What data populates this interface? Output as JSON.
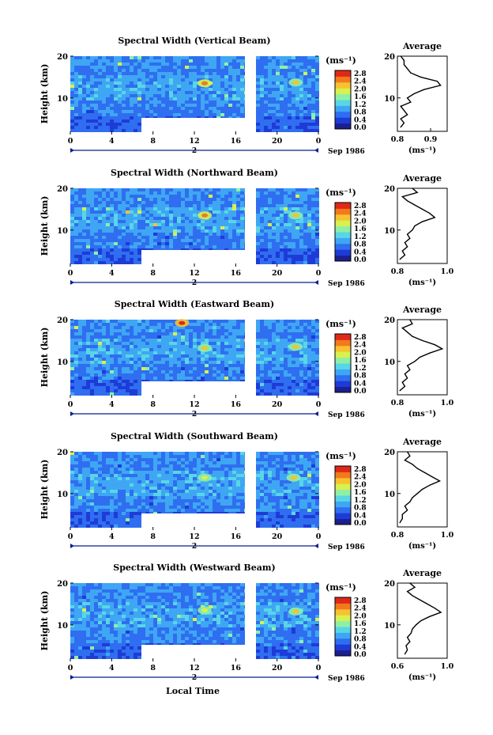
{
  "figure": {
    "xlabel": "Local Time",
    "colorbar_unit": "(ms⁻¹)",
    "colorbar_ticks": [
      "2.8",
      "2.4",
      "2.0",
      "1.6",
      "1.2",
      "0.8",
      "0.4",
      "0.0"
    ],
    "date_label": "Sep 1986",
    "day_label": "2",
    "colormap": [
      "#1c1f8c",
      "#1e3bd8",
      "#2f6ef0",
      "#3fa6f4",
      "#58d6e6",
      "#8ef0a6",
      "#d8f050",
      "#f7c230",
      "#f27a1c",
      "#e02818"
    ]
  },
  "chart_data": [
    {
      "type": "heatmap",
      "title": "Spectral Width (Vertical Beam)",
      "xlabel": "",
      "ylabel": "Height (km)",
      "x_ticks": [
        "0",
        "4",
        "8",
        "12",
        "16",
        "20",
        "0"
      ],
      "xlim": [
        0,
        24
      ],
      "y_ticks": [
        "20",
        "10"
      ],
      "ylim": [
        2,
        20
      ],
      "hotspots": [
        {
          "x": 13.0,
          "y": 13.5,
          "value": 2.4
        },
        {
          "x": 21.8,
          "y": 13.7,
          "value": 2.0
        }
      ],
      "profile": {
        "title": "Average",
        "xlabel": "(ms⁻¹)",
        "x_ticks": [
          "0.8",
          "0.9"
        ],
        "xlim": [
          0.8,
          0.95
        ],
        "y_ticks": [
          "20",
          "10"
        ],
        "y": [
          3,
          4,
          5,
          6,
          7,
          8,
          9,
          10,
          11,
          12,
          13,
          14,
          15,
          16,
          17,
          18,
          19,
          20
        ],
        "x": [
          0.81,
          0.82,
          0.81,
          0.83,
          0.82,
          0.81,
          0.84,
          0.83,
          0.85,
          0.88,
          0.93,
          0.92,
          0.87,
          0.84,
          0.83,
          0.82,
          0.82,
          0.81
        ]
      }
    },
    {
      "type": "heatmap",
      "title": "Spectral Width (Northward Beam)",
      "xlabel": "",
      "ylabel": "Height (km)",
      "x_ticks": [
        "0",
        "4",
        "8",
        "12",
        "16",
        "20",
        "0"
      ],
      "xlim": [
        0,
        24
      ],
      "y_ticks": [
        "20",
        "10"
      ],
      "ylim": [
        2,
        20
      ],
      "hotspots": [
        {
          "x": 13.0,
          "y": 13.5,
          "value": 2.4
        },
        {
          "x": 21.8,
          "y": 13.5,
          "value": 2.0
        }
      ],
      "profile": {
        "title": "Average",
        "xlabel": "(ms⁻¹)",
        "x_ticks": [
          "0.8",
          "1.0"
        ],
        "xlim": [
          0.8,
          1.0
        ],
        "y_ticks": [
          "20",
          "10"
        ],
        "y": [
          3,
          4,
          5,
          6,
          7,
          8,
          9,
          10,
          11,
          12,
          13,
          14,
          15,
          16,
          17,
          18,
          19,
          20
        ],
        "x": [
          0.81,
          0.83,
          0.82,
          0.84,
          0.83,
          0.85,
          0.84,
          0.86,
          0.87,
          0.9,
          0.95,
          0.93,
          0.9,
          0.87,
          0.84,
          0.82,
          0.88,
          0.86
        ]
      }
    },
    {
      "type": "heatmap",
      "title": "Spectral Width (Eastward Beam)",
      "xlabel": "",
      "ylabel": "Height (km)",
      "x_ticks": [
        "0",
        "4",
        "8",
        "12",
        "16",
        "20",
        "0"
      ],
      "xlim": [
        0,
        24
      ],
      "y_ticks": [
        "20",
        "10"
      ],
      "ylim": [
        2,
        20
      ],
      "hotspots": [
        {
          "x": 10.8,
          "y": 19.2,
          "value": 2.6
        },
        {
          "x": 13.0,
          "y": 13.2,
          "value": 2.0
        },
        {
          "x": 21.8,
          "y": 13.5,
          "value": 2.0
        }
      ],
      "profile": {
        "title": "Average",
        "xlabel": "(ms⁻¹)",
        "x_ticks": [
          "0.8",
          "1.0"
        ],
        "xlim": [
          0.8,
          1.0
        ],
        "y_ticks": [
          "20",
          "10"
        ],
        "y": [
          3,
          4,
          5,
          6,
          7,
          8,
          9,
          10,
          11,
          12,
          13,
          14,
          15,
          16,
          17,
          18,
          19,
          20
        ],
        "x": [
          0.81,
          0.83,
          0.82,
          0.84,
          0.83,
          0.85,
          0.84,
          0.87,
          0.89,
          0.93,
          0.98,
          0.95,
          0.9,
          0.86,
          0.84,
          0.82,
          0.86,
          0.85
        ]
      }
    },
    {
      "type": "heatmap",
      "title": "Spectral Width (Southward Beam)",
      "xlabel": "",
      "ylabel": "Height (km)",
      "x_ticks": [
        "0",
        "4",
        "8",
        "12",
        "16",
        "20",
        "0"
      ],
      "xlim": [
        0,
        24
      ],
      "y_ticks": [
        "20",
        "10"
      ],
      "ylim": [
        2,
        20
      ],
      "hotspots": [
        {
          "x": 13.0,
          "y": 13.8,
          "value": 1.8
        },
        {
          "x": 21.6,
          "y": 13.8,
          "value": 2.0
        }
      ],
      "profile": {
        "title": "Average",
        "xlabel": "(ms⁻¹)",
        "x_ticks": [
          "0.8",
          "1.0"
        ],
        "xlim": [
          0.8,
          1.0
        ],
        "y_ticks": [
          "20",
          "10"
        ],
        "y": [
          3,
          4,
          5,
          6,
          7,
          8,
          9,
          10,
          11,
          12,
          13,
          14,
          15,
          16,
          17,
          18,
          19,
          20
        ],
        "x": [
          0.81,
          0.82,
          0.82,
          0.84,
          0.83,
          0.85,
          0.86,
          0.88,
          0.9,
          0.93,
          0.97,
          0.94,
          0.91,
          0.88,
          0.86,
          0.83,
          0.85,
          0.84
        ]
      }
    },
    {
      "type": "heatmap",
      "title": "Spectral Width (Westward Beam)",
      "xlabel": "Local Time",
      "ylabel": "Height (km)",
      "x_ticks": [
        "0",
        "4",
        "8",
        "12",
        "16",
        "20",
        "0"
      ],
      "xlim": [
        0,
        24
      ],
      "y_ticks": [
        "20",
        "10"
      ],
      "ylim": [
        2,
        20
      ],
      "hotspots": [
        {
          "x": 13.0,
          "y": 13.5,
          "value": 1.8
        },
        {
          "x": 21.8,
          "y": 13.2,
          "value": 2.0
        }
      ],
      "profile": {
        "title": "Average",
        "xlabel": "(ms⁻¹)",
        "x_ticks": [
          "0.6",
          "1.0"
        ],
        "xlim": [
          0.6,
          1.0
        ],
        "y_ticks": [
          "20",
          "10"
        ],
        "y": [
          3,
          4,
          5,
          6,
          7,
          8,
          9,
          10,
          11,
          12,
          13,
          14,
          15,
          16,
          17,
          18,
          19,
          20
        ],
        "x": [
          0.66,
          0.68,
          0.67,
          0.7,
          0.68,
          0.71,
          0.72,
          0.75,
          0.79,
          0.86,
          0.95,
          0.9,
          0.84,
          0.78,
          0.72,
          0.68,
          0.74,
          0.7
        ]
      }
    }
  ]
}
